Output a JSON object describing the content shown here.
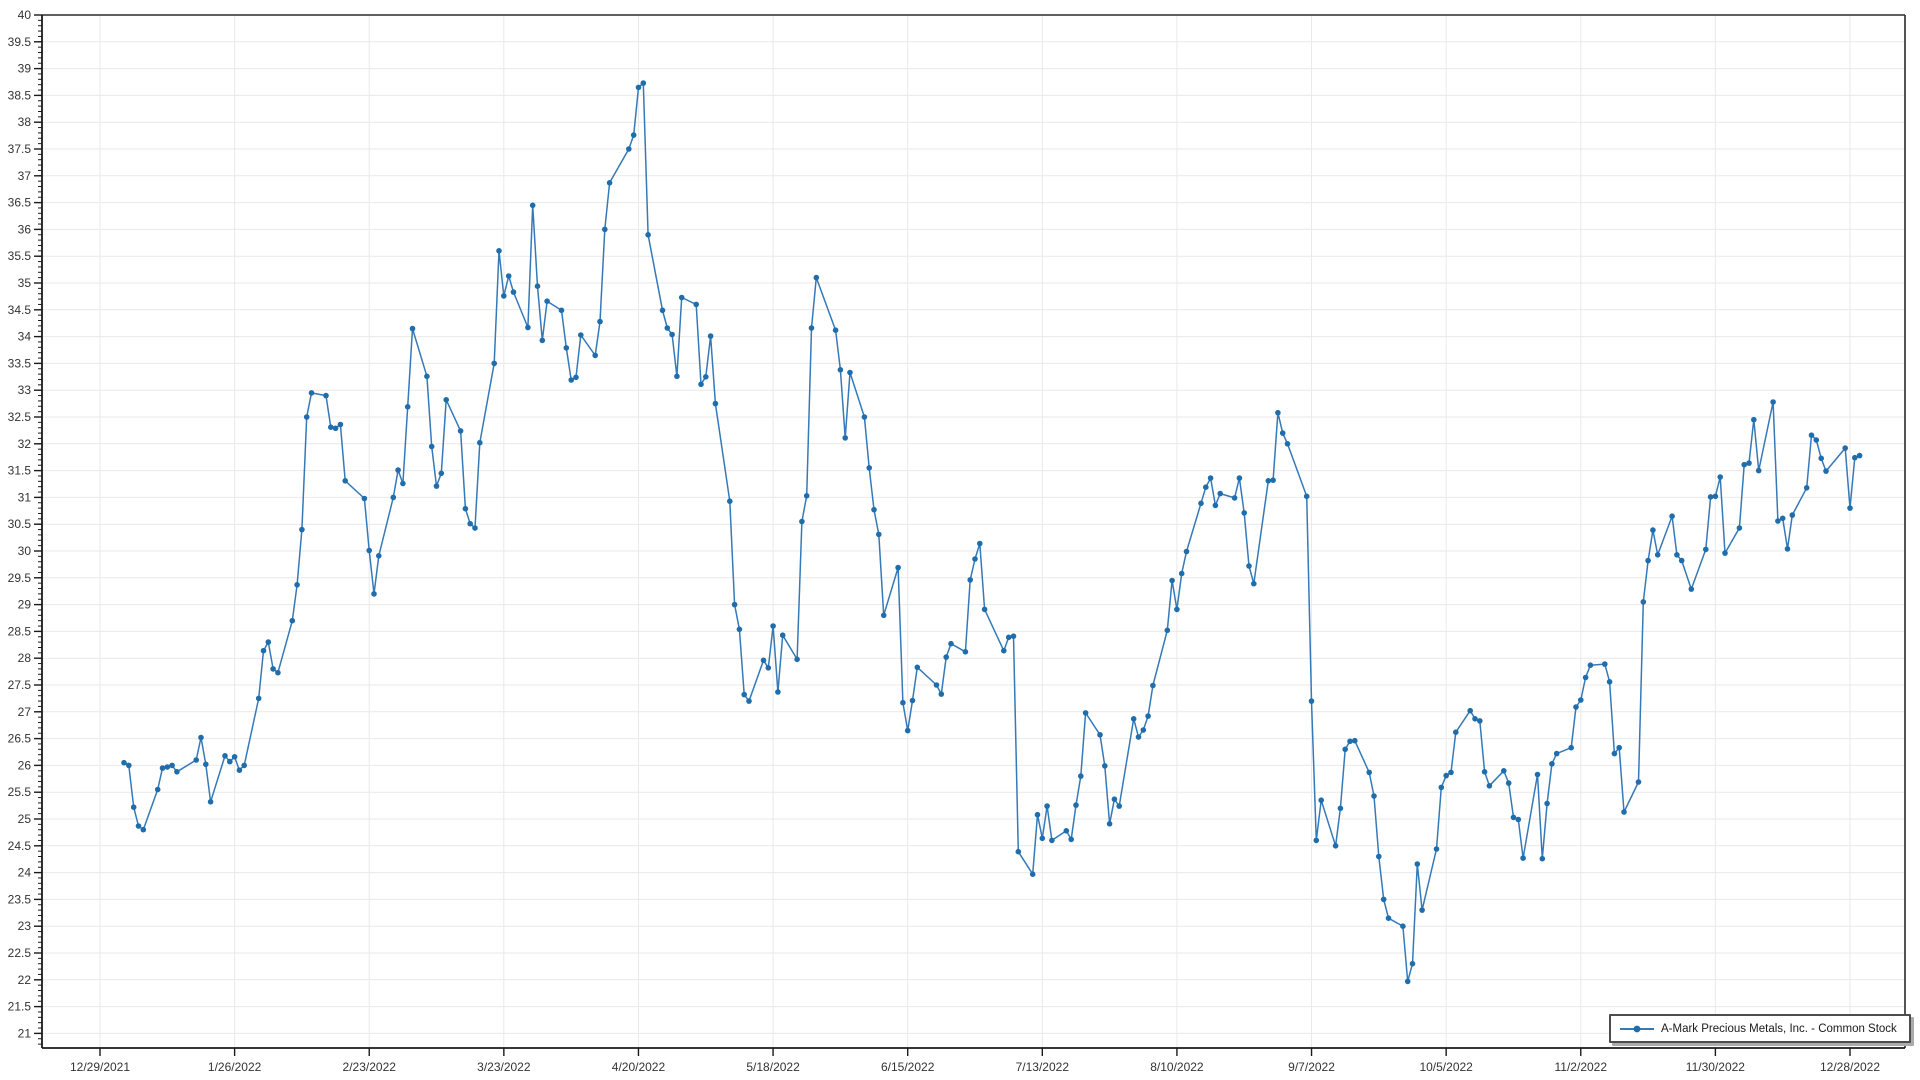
{
  "colors": {
    "background": "#ffffff",
    "gridline": "#e9e9e9",
    "axis_line": "#1a1a1a",
    "plot_border": "#2b2b2b",
    "tick_mark": "#1a1a1a",
    "tick_label": "#333333",
    "legend_border": "#4d4d4d",
    "legend_shadow": "#ababab"
  },
  "chart_data": {
    "type": "line",
    "title": "",
    "xlabel": "",
    "ylabel": "",
    "grid": true,
    "legend_position": "bottom-right",
    "ylim": [
      20.7,
      40
    ],
    "y_tick_step": 0.5,
    "y_minor_tick_step": 0.1,
    "x_axis_start": "12/29/2021",
    "x_tick_interval_days": 28,
    "x_tick_labels": [
      "12/29/2021",
      "1/26/2022",
      "2/23/2022",
      "3/23/2022",
      "4/20/2022",
      "5/18/2022",
      "6/15/2022",
      "7/13/2022",
      "8/10/2022",
      "9/7/2022",
      "10/5/2022",
      "11/2/2022",
      "11/30/2022",
      "12/28/2022"
    ],
    "series": [
      {
        "name": "A-Mark Precious Metals, Inc. - Common Stock",
        "line_color": "#3579b8",
        "marker_color": "#1f6dab",
        "marker": "circle",
        "points_year": 2022,
        "points": [
          [
            "1/3",
            26.05
          ],
          [
            "1/4",
            26.0
          ],
          [
            "1/5",
            25.22
          ],
          [
            "1/6",
            24.87
          ],
          [
            "1/7",
            24.8
          ],
          [
            "1/10",
            25.55
          ],
          [
            "1/11",
            25.95
          ],
          [
            "1/12",
            25.97
          ],
          [
            "1/13",
            26.0
          ],
          [
            "1/14",
            25.88
          ],
          [
            "1/18",
            26.1
          ],
          [
            "1/19",
            26.52
          ],
          [
            "1/20",
            26.02
          ],
          [
            "1/21",
            25.32
          ],
          [
            "1/24",
            26.18
          ],
          [
            "1/25",
            26.07
          ],
          [
            "1/26",
            26.16
          ],
          [
            "1/27",
            25.91
          ],
          [
            "1/28",
            26.0
          ],
          [
            "1/31",
            27.25
          ],
          [
            "2/1",
            28.14
          ],
          [
            "2/2",
            28.3
          ],
          [
            "2/3",
            27.8
          ],
          [
            "2/4",
            27.73
          ],
          [
            "2/7",
            28.7
          ],
          [
            "2/8",
            29.37
          ],
          [
            "2/9",
            30.4
          ],
          [
            "2/10",
            32.5
          ],
          [
            "2/11",
            32.95
          ],
          [
            "2/14",
            32.9
          ],
          [
            "2/15",
            32.31
          ],
          [
            "2/16",
            32.29
          ],
          [
            "2/17",
            32.36
          ],
          [
            "2/18",
            31.31
          ],
          [
            "2/22",
            30.98
          ],
          [
            "2/23",
            30.01
          ],
          [
            "2/24",
            29.2
          ],
          [
            "2/25",
            29.91
          ],
          [
            "2/28",
            31.0
          ],
          [
            "3/1",
            31.51
          ],
          [
            "3/2",
            31.26
          ],
          [
            "3/3",
            32.69
          ],
          [
            "3/4",
            34.15
          ],
          [
            "3/7",
            33.26
          ],
          [
            "3/8",
            31.95
          ],
          [
            "3/9",
            31.21
          ],
          [
            "3/10",
            31.45
          ],
          [
            "3/11",
            32.82
          ],
          [
            "3/14",
            32.24
          ],
          [
            "3/15",
            30.79
          ],
          [
            "3/16",
            30.51
          ],
          [
            "3/17",
            30.43
          ],
          [
            "3/18",
            32.02
          ],
          [
            "3/21",
            33.5
          ],
          [
            "3/22",
            35.6
          ],
          [
            "3/23",
            34.76
          ],
          [
            "3/24",
            35.13
          ],
          [
            "3/25",
            34.83
          ],
          [
            "3/28",
            34.17
          ],
          [
            "3/29",
            36.45
          ],
          [
            "3/30",
            34.94
          ],
          [
            "3/31",
            33.93
          ],
          [
            "4/1",
            34.66
          ],
          [
            "4/4",
            34.49
          ],
          [
            "4/5",
            33.79
          ],
          [
            "4/6",
            33.19
          ],
          [
            "4/7",
            33.24
          ],
          [
            "4/8",
            34.03
          ],
          [
            "4/11",
            33.65
          ],
          [
            "4/12",
            34.28
          ],
          [
            "4/13",
            36.0
          ],
          [
            "4/14",
            36.87
          ],
          [
            "4/18",
            37.5
          ],
          [
            "4/19",
            37.76
          ],
          [
            "4/20",
            38.65
          ],
          [
            "4/21",
            38.73
          ],
          [
            "4/22",
            35.9
          ],
          [
            "4/25",
            34.49
          ],
          [
            "4/26",
            34.16
          ],
          [
            "4/27",
            34.04
          ],
          [
            "4/28",
            33.26
          ],
          [
            "4/29",
            34.73
          ],
          [
            "5/2",
            34.6
          ],
          [
            "5/3",
            33.11
          ],
          [
            "5/4",
            33.25
          ],
          [
            "5/5",
            34.01
          ],
          [
            "5/6",
            32.75
          ],
          [
            "5/9",
            30.93
          ],
          [
            "5/10",
            29.0
          ],
          [
            "5/11",
            28.54
          ],
          [
            "5/12",
            27.32
          ],
          [
            "5/13",
            27.2
          ],
          [
            "5/16",
            27.96
          ],
          [
            "5/17",
            27.82
          ],
          [
            "5/18",
            28.6
          ],
          [
            "5/19",
            27.37
          ],
          [
            "5/20",
            28.43
          ],
          [
            "5/23",
            27.98
          ],
          [
            "5/24",
            30.55
          ],
          [
            "5/25",
            31.03
          ],
          [
            "5/26",
            34.16
          ],
          [
            "5/27",
            35.1
          ],
          [
            "5/31",
            34.12
          ],
          [
            "6/1",
            33.38
          ],
          [
            "6/2",
            32.11
          ],
          [
            "6/3",
            33.33
          ],
          [
            "6/6",
            32.5
          ],
          [
            "6/7",
            31.55
          ],
          [
            "6/8",
            30.77
          ],
          [
            "6/9",
            30.31
          ],
          [
            "6/10",
            28.8
          ],
          [
            "6/13",
            29.69
          ],
          [
            "6/14",
            27.17
          ],
          [
            "6/15",
            26.65
          ],
          [
            "6/16",
            27.21
          ],
          [
            "6/17",
            27.83
          ],
          [
            "6/21",
            27.5
          ],
          [
            "6/22",
            27.33
          ],
          [
            "6/23",
            28.02
          ],
          [
            "6/24",
            28.27
          ],
          [
            "6/27",
            28.12
          ],
          [
            "6/28",
            29.46
          ],
          [
            "6/29",
            29.85
          ],
          [
            "6/30",
            30.14
          ],
          [
            "7/1",
            28.91
          ],
          [
            "7/5",
            28.14
          ],
          [
            "7/6",
            28.39
          ],
          [
            "7/7",
            28.41
          ],
          [
            "7/8",
            24.39
          ],
          [
            "7/11",
            23.97
          ],
          [
            "7/12",
            25.08
          ],
          [
            "7/13",
            24.64
          ],
          [
            "7/14",
            25.24
          ],
          [
            "7/15",
            24.6
          ],
          [
            "7/18",
            24.78
          ],
          [
            "7/19",
            24.62
          ],
          [
            "7/20",
            25.26
          ],
          [
            "7/21",
            25.8
          ],
          [
            "7/22",
            26.98
          ],
          [
            "7/25",
            26.57
          ],
          [
            "7/26",
            25.99
          ],
          [
            "7/27",
            24.91
          ],
          [
            "7/28",
            25.37
          ],
          [
            "7/29",
            25.24
          ],
          [
            "8/1",
            26.87
          ],
          [
            "8/2",
            26.53
          ],
          [
            "8/3",
            26.66
          ],
          [
            "8/4",
            26.92
          ],
          [
            "8/5",
            27.49
          ],
          [
            "8/8",
            28.52
          ],
          [
            "8/9",
            29.45
          ],
          [
            "8/10",
            28.91
          ],
          [
            "8/11",
            29.58
          ],
          [
            "8/12",
            29.99
          ],
          [
            "8/15",
            30.89
          ],
          [
            "8/16",
            31.19
          ],
          [
            "8/17",
            31.36
          ],
          [
            "8/18",
            30.85
          ],
          [
            "8/19",
            31.07
          ],
          [
            "8/22",
            30.99
          ],
          [
            "8/23",
            31.36
          ],
          [
            "8/24",
            30.71
          ],
          [
            "8/25",
            29.72
          ],
          [
            "8/26",
            29.39
          ],
          [
            "8/29",
            31.31
          ],
          [
            "8/30",
            31.32
          ],
          [
            "8/31",
            32.58
          ],
          [
            "9/1",
            32.2
          ],
          [
            "9/2",
            32.0
          ],
          [
            "9/6",
            31.02
          ],
          [
            "9/7",
            27.2
          ],
          [
            "9/8",
            24.6
          ],
          [
            "9/9",
            25.35
          ],
          [
            "9/12",
            24.5
          ],
          [
            "9/13",
            25.2
          ],
          [
            "9/14",
            26.3
          ],
          [
            "9/15",
            26.45
          ],
          [
            "9/16",
            26.46
          ],
          [
            "9/19",
            25.87
          ],
          [
            "9/20",
            25.43
          ],
          [
            "9/21",
            24.3
          ],
          [
            "9/22",
            23.5
          ],
          [
            "9/23",
            23.15
          ],
          [
            "9/26",
            23.0
          ],
          [
            "9/27",
            21.97
          ],
          [
            "9/28",
            22.3
          ],
          [
            "9/29",
            24.16
          ],
          [
            "9/30",
            23.3
          ],
          [
            "10/3",
            24.44
          ],
          [
            "10/4",
            25.59
          ],
          [
            "10/5",
            25.81
          ],
          [
            "10/6",
            25.87
          ],
          [
            "10/7",
            26.62
          ],
          [
            "10/10",
            27.02
          ],
          [
            "10/11",
            26.87
          ],
          [
            "10/12",
            26.83
          ],
          [
            "10/13",
            25.88
          ],
          [
            "10/14",
            25.62
          ],
          [
            "10/17",
            25.9
          ],
          [
            "10/18",
            25.67
          ],
          [
            "10/19",
            25.03
          ],
          [
            "10/20",
            24.99
          ],
          [
            "10/21",
            24.27
          ],
          [
            "10/24",
            25.83
          ],
          [
            "10/25",
            24.26
          ],
          [
            "10/26",
            25.29
          ],
          [
            "10/27",
            26.03
          ],
          [
            "10/28",
            26.22
          ],
          [
            "10/31",
            26.33
          ],
          [
            "11/1",
            27.09
          ],
          [
            "11/2",
            27.22
          ],
          [
            "11/3",
            27.64
          ],
          [
            "11/4",
            27.87
          ],
          [
            "11/7",
            27.89
          ],
          [
            "11/8",
            27.56
          ],
          [
            "11/9",
            26.22
          ],
          [
            "11/10",
            26.33
          ],
          [
            "11/11",
            25.13
          ],
          [
            "11/14",
            25.69
          ],
          [
            "11/15",
            29.05
          ],
          [
            "11/16",
            29.82
          ],
          [
            "11/17",
            30.39
          ],
          [
            "11/18",
            29.93
          ],
          [
            "11/21",
            30.65
          ],
          [
            "11/22",
            29.93
          ],
          [
            "11/23",
            29.82
          ],
          [
            "11/25",
            29.29
          ],
          [
            "11/28",
            30.03
          ],
          [
            "11/29",
            31.01
          ],
          [
            "11/30",
            31.02
          ],
          [
            "12/1",
            31.38
          ],
          [
            "12/2",
            29.96
          ],
          [
            "12/5",
            30.43
          ],
          [
            "12/6",
            31.61
          ],
          [
            "12/7",
            31.64
          ],
          [
            "12/8",
            32.45
          ],
          [
            "12/9",
            31.5
          ],
          [
            "12/12",
            32.78
          ],
          [
            "12/13",
            30.56
          ],
          [
            "12/14",
            30.61
          ],
          [
            "12/15",
            30.04
          ],
          [
            "12/16",
            30.67
          ],
          [
            "12/19",
            31.18
          ],
          [
            "12/20",
            32.16
          ],
          [
            "12/21",
            32.07
          ],
          [
            "12/22",
            31.73
          ],
          [
            "12/23",
            31.49
          ],
          [
            "12/27",
            31.92
          ],
          [
            "12/28",
            30.8
          ],
          [
            "12/29",
            31.74
          ],
          [
            "12/30",
            31.78
          ]
        ]
      }
    ]
  },
  "legend": {
    "label": "A-Mark Precious Metals, Inc. - Common Stock"
  }
}
